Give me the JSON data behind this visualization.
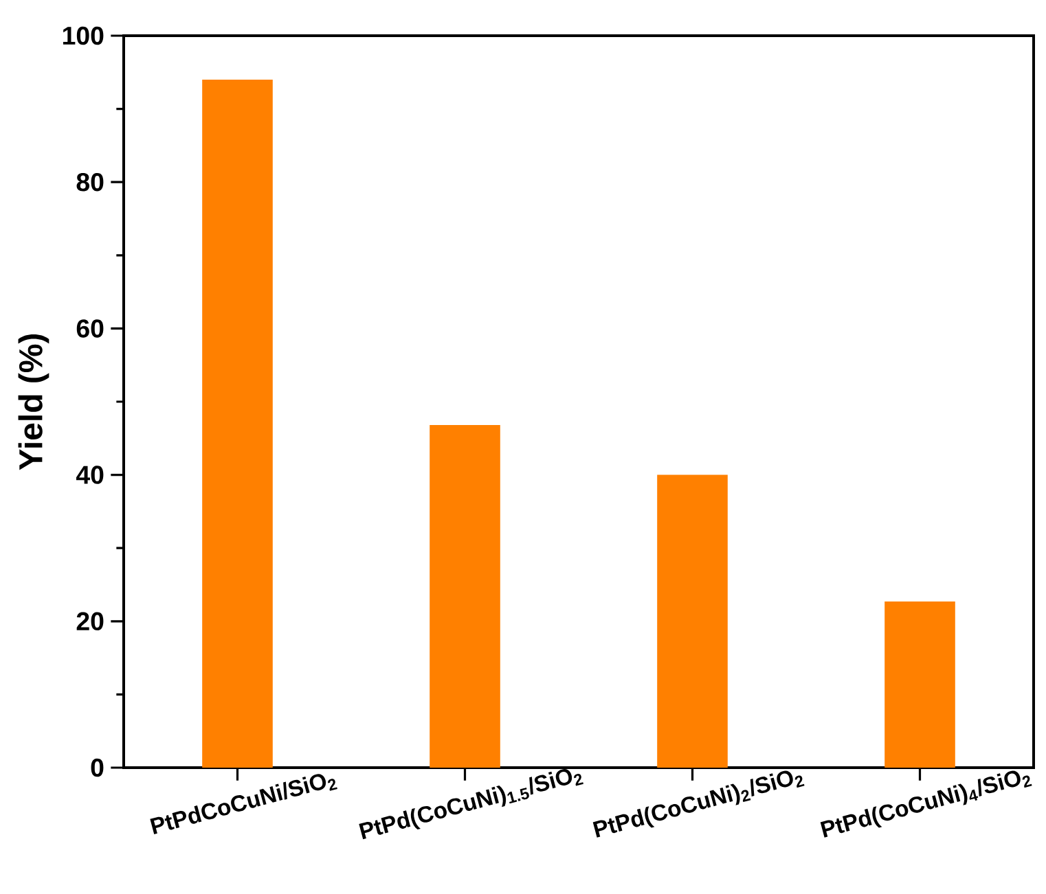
{
  "chart_data": {
    "type": "bar",
    "ylabel": "Yield (%)",
    "categories": [
      "PtPdCoCuNi/SiO$_{2}$",
      "PtPd(CoCuNi)$_{1.5}$/SiO$_{2}$",
      "PtPd(CoCuNi)$_{2}$/SiO$_{2}$",
      "PtPd(CoCuNi)$_{4}$/SiO$_{2}$"
    ],
    "values": [
      94.0,
      46.8,
      40.0,
      22.7
    ],
    "color": "#ff8000",
    "ylim": [
      0,
      100
    ],
    "yticks": [
      0,
      20,
      40,
      60,
      80,
      100
    ]
  }
}
